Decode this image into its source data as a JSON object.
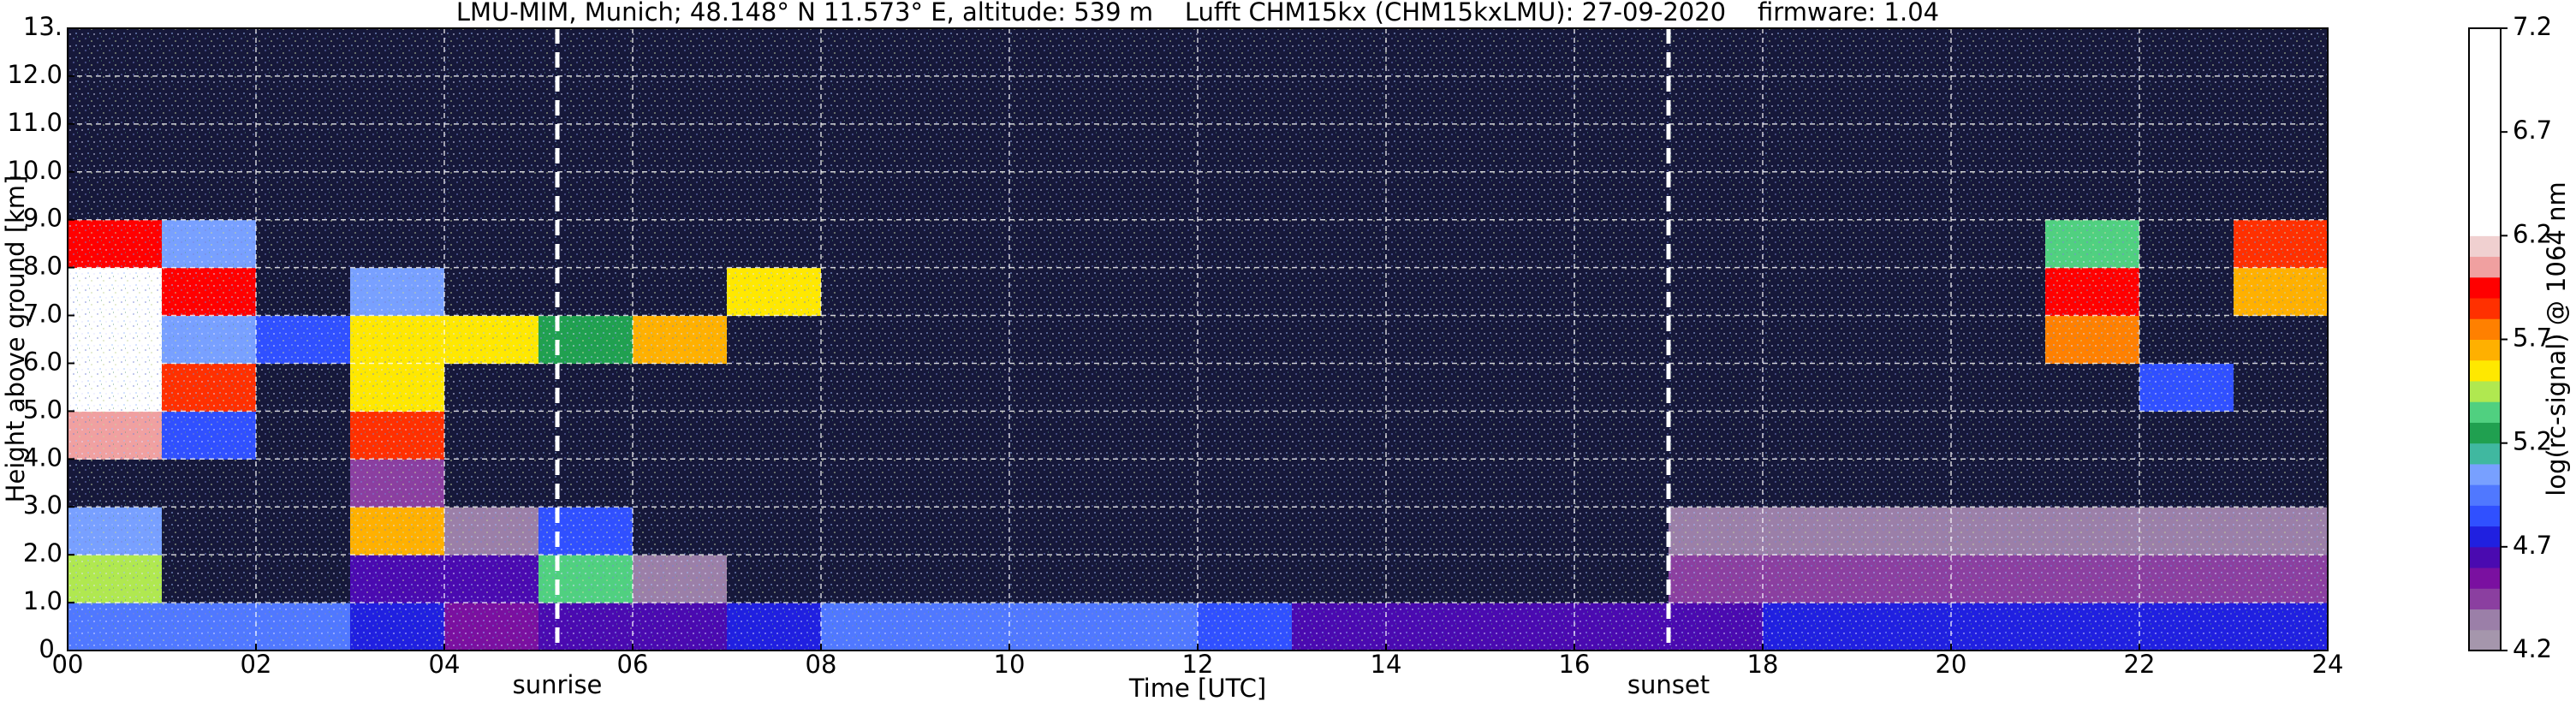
{
  "chart_data": {
    "type": "heatmap",
    "title": "LMU-MIM, Munich; 48.148° N 11.573° E, altitude: 539 m    Lufft CHM15kx (CHM15kxLMU): 27-09-2020    firmware: 1.04",
    "xlabel": "Time [UTC]",
    "ylabel": "Height above ground [km]",
    "xlim": [
      0,
      24
    ],
    "ylim": [
      0,
      13
    ],
    "xticks": [
      {
        "value": 0,
        "label": "00"
      },
      {
        "value": 2,
        "label": "02"
      },
      {
        "value": 4,
        "label": "04"
      },
      {
        "value": 6,
        "label": "06"
      },
      {
        "value": 8,
        "label": "08"
      },
      {
        "value": 10,
        "label": "10"
      },
      {
        "value": 12,
        "label": "12"
      },
      {
        "value": 14,
        "label": "14"
      },
      {
        "value": 16,
        "label": "16"
      },
      {
        "value": 18,
        "label": "18"
      },
      {
        "value": 20,
        "label": "20"
      },
      {
        "value": 22,
        "label": "22"
      },
      {
        "value": 24,
        "label": "24"
      }
    ],
    "yticks": [
      {
        "value": 0,
        "label": "0."
      },
      {
        "value": 1,
        "label": "1.0"
      },
      {
        "value": 2,
        "label": "2.0"
      },
      {
        "value": 3,
        "label": "3.0"
      },
      {
        "value": 4,
        "label": "4.0"
      },
      {
        "value": 5,
        "label": "5.0"
      },
      {
        "value": 6,
        "label": "6.0"
      },
      {
        "value": 7,
        "label": "7.0"
      },
      {
        "value": 8,
        "label": "8.0"
      },
      {
        "value": 9,
        "label": "9.0"
      },
      {
        "value": 10,
        "label": "10.0"
      },
      {
        "value": 11,
        "label": "11.0"
      },
      {
        "value": 12,
        "label": "12.0"
      },
      {
        "value": 13,
        "label": "13."
      }
    ],
    "grid": true,
    "annotations": [
      {
        "text": "sunrise",
        "x": 5.2
      },
      {
        "text": "sunset",
        "x": 17.0
      }
    ],
    "z": [
      [
        4.9,
        4.9,
        4.9,
        4.7,
        4.5,
        4.6,
        4.6,
        4.7,
        4.9,
        4.9,
        4.9,
        4.9,
        4.8,
        4.6,
        4.6,
        4.6,
        4.6,
        4.6,
        4.7,
        4.7,
        4.7,
        4.7,
        4.7,
        4.7
      ],
      [
        5.4,
        4.0,
        4.0,
        4.6,
        4.6,
        5.3,
        4.3,
        4.1,
        4.1,
        4.1,
        4.1,
        4.1,
        4.1,
        4.1,
        4.1,
        4.1,
        4.1,
        4.4,
        4.4,
        4.4,
        4.4,
        4.4,
        4.4,
        4.4
      ],
      [
        5.0,
        4.0,
        4.0,
        5.6,
        4.3,
        4.8,
        4.1,
        4.1,
        4.1,
        4.1,
        4.1,
        4.1,
        4.1,
        4.1,
        4.1,
        4.1,
        4.1,
        4.3,
        4.3,
        4.3,
        4.3,
        4.3,
        4.3,
        4.3
      ],
      [
        4.1,
        4.0,
        4.0,
        4.4,
        4.1,
        4.1,
        4.1,
        4.1,
        4.1,
        4.1,
        4.1,
        4.1,
        4.1,
        4.1,
        4.1,
        4.1,
        4.1,
        4.1,
        4.1,
        4.1,
        4.1,
        4.1,
        4.1,
        4.1
      ],
      [
        6.0,
        4.8,
        4.0,
        5.8,
        4.1,
        4.1,
        4.1,
        4.1,
        4.1,
        4.1,
        4.1,
        4.1,
        4.1,
        4.1,
        4.1,
        4.1,
        4.1,
        4.1,
        4.1,
        4.1,
        4.1,
        4.1,
        4.1,
        4.1
      ],
      [
        6.5,
        5.8,
        4.0,
        5.5,
        4.1,
        4.1,
        4.1,
        4.1,
        4.1,
        4.1,
        4.1,
        4.1,
        4.1,
        4.1,
        4.1,
        4.1,
        4.1,
        4.1,
        4.1,
        4.1,
        4.1,
        4.1,
        4.8,
        4.1
      ],
      [
        6.8,
        5.0,
        4.8,
        5.5,
        5.5,
        5.2,
        5.6,
        4.1,
        4.1,
        4.1,
        4.1,
        4.1,
        4.1,
        4.1,
        4.1,
        4.1,
        4.1,
        4.1,
        4.1,
        4.1,
        4.1,
        5.7,
        4.1,
        4.1
      ],
      [
        6.5,
        5.9,
        4.0,
        5.0,
        4.1,
        4.1,
        4.1,
        5.5,
        4.1,
        4.1,
        4.1,
        4.1,
        4.1,
        4.1,
        4.1,
        4.1,
        4.1,
        4.1,
        4.1,
        4.1,
        4.1,
        5.9,
        4.1,
        5.6
      ],
      [
        5.9,
        5.0,
        4.0,
        4.1,
        4.1,
        4.1,
        4.1,
        4.1,
        4.1,
        4.1,
        4.1,
        4.1,
        4.1,
        4.1,
        4.1,
        4.1,
        4.1,
        4.1,
        4.1,
        4.1,
        4.1,
        5.3,
        4.1,
        5.8
      ],
      [
        4.1,
        4.1,
        4.1,
        4.1,
        4.1,
        4.1,
        4.1,
        4.1,
        4.1,
        4.1,
        4.1,
        4.1,
        4.1,
        4.1,
        4.1,
        4.1,
        4.1,
        4.1,
        4.1,
        4.1,
        4.1,
        4.1,
        4.1,
        4.1
      ],
      [
        4.1,
        4.1,
        4.1,
        4.1,
        4.1,
        4.1,
        4.1,
        4.1,
        4.1,
        4.1,
        4.1,
        4.1,
        4.1,
        4.1,
        4.1,
        4.1,
        4.1,
        4.1,
        4.1,
        4.1,
        4.1,
        4.1,
        4.1,
        4.1
      ],
      [
        4.1,
        4.1,
        4.1,
        4.1,
        4.1,
        4.1,
        4.1,
        4.1,
        4.1,
        4.1,
        4.1,
        4.1,
        4.1,
        4.1,
        4.1,
        4.1,
        4.1,
        4.1,
        4.1,
        4.1,
        4.1,
        4.1,
        4.1,
        4.1
      ],
      [
        4.1,
        4.1,
        4.1,
        4.1,
        4.1,
        4.1,
        4.1,
        4.1,
        4.1,
        4.1,
        4.1,
        4.1,
        4.1,
        4.1,
        4.1,
        4.1,
        4.1,
        4.1,
        4.1,
        4.1,
        4.1,
        4.1,
        4.1,
        4.1
      ]
    ],
    "clim": [
      4.2,
      7.2
    ],
    "under_color": "#16183a",
    "colors": [
      "#a596ac",
      "#9b7fa8",
      "#8b3fa0",
      "#7a10a0",
      "#4a0ab0",
      "#2020e0",
      "#3050ff",
      "#5078ff",
      "#78a0ff",
      "#40b8a0",
      "#20a050",
      "#50d080",
      "#b0e850",
      "#ffe800",
      "#ffb000",
      "#ff8000",
      "#ff3000",
      "#ff0000",
      "#f0a0a0",
      "#f0d0d0",
      "#ffffff",
      "#ffffff",
      "#ffffff",
      "#ffffff",
      "#ffffff",
      "#ffffff",
      "#ffffff",
      "#ffffff",
      "#ffffff",
      "#ffffff"
    ],
    "colorbar": {
      "label": "log(rc-signal) @ 1064 nm",
      "ticks": [
        4.2,
        4.7,
        5.2,
        5.7,
        6.2,
        6.7,
        7.2
      ]
    }
  }
}
